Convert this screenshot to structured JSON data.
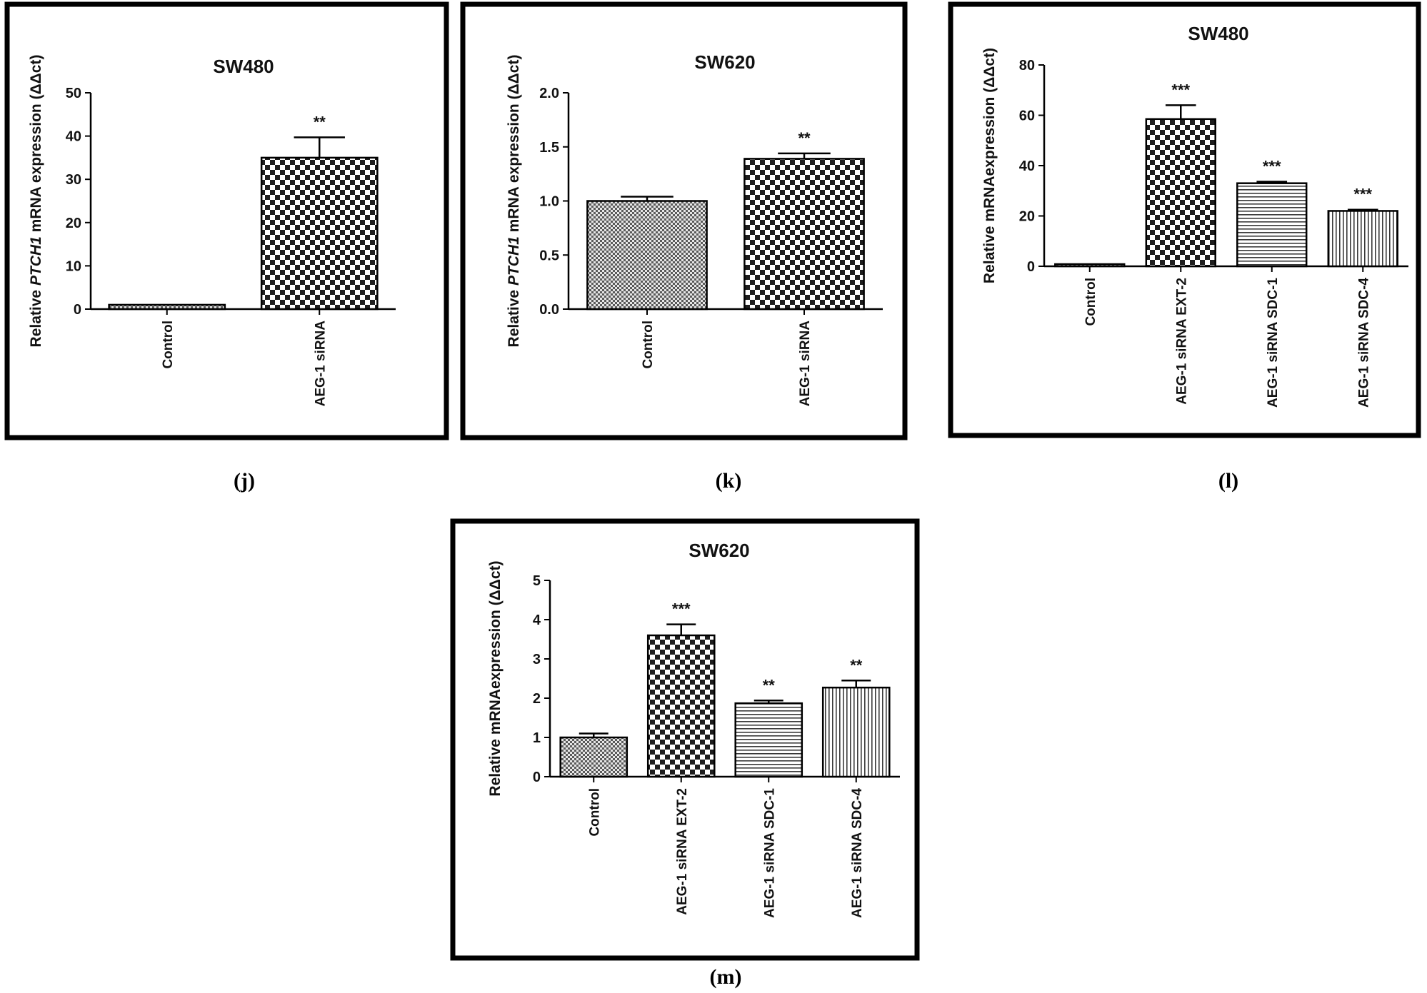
{
  "chart_data": [
    {
      "panel": "(j)",
      "type": "bar",
      "title": "SW480",
      "ylabel": "Relative PTCH1  mRNA  expression (ΔΔct)",
      "ylabel_prefix": "Relative ",
      "ylabel_gene": "PTCH1",
      "ylabel_suffix": "  mRNA  expression (ΔΔct)",
      "xlabel": "",
      "ylim": [
        0,
        50
      ],
      "yticks": [
        0,
        10,
        20,
        30,
        40,
        50
      ],
      "ytick_labels": [
        "0",
        "10",
        "20",
        "30",
        "40",
        "50"
      ],
      "categories": [
        "Control",
        "AEG-1 siRNA"
      ],
      "values": [
        1,
        35
      ],
      "errors": [
        0,
        4.7
      ],
      "significance": [
        "",
        "**"
      ],
      "patterns": [
        "checker-small",
        "checker"
      ]
    },
    {
      "panel": "(k)",
      "type": "bar",
      "title": "SW620",
      "ylabel": "Relative PTCH1  mRNA  expression (ΔΔct)",
      "ylabel_prefix": "Relative ",
      "ylabel_gene": "PTCH1",
      "ylabel_suffix": "  mRNA  expression (ΔΔct)",
      "xlabel": "",
      "ylim": [
        0,
        2.0
      ],
      "yticks": [
        0,
        0.5,
        1.0,
        1.5,
        2.0
      ],
      "ytick_labels": [
        "0.0",
        "0.5",
        "1.0",
        "1.5",
        "2.0"
      ],
      "categories": [
        "Control",
        "AEG-1 siRNA"
      ],
      "values": [
        1.0,
        1.39
      ],
      "errors": [
        0.04,
        0.05
      ],
      "significance": [
        "",
        "**"
      ],
      "patterns": [
        "checker-small",
        "checker"
      ]
    },
    {
      "panel": "(l)",
      "type": "bar",
      "title": "SW480",
      "ylabel": "Relative mRNAexpression (ΔΔct)",
      "ylabel_prefix": "Relative mRNAexpression (ΔΔct)",
      "ylabel_gene": "",
      "ylabel_suffix": "",
      "xlabel": "",
      "ylim": [
        0,
        80
      ],
      "yticks": [
        0,
        20,
        40,
        60,
        80
      ],
      "ytick_labels": [
        "0",
        "20",
        "40",
        "60",
        "80"
      ],
      "categories": [
        "Control",
        "AEG-1 siRNA EXT-2",
        "AEG-1 siRNA SDC-1",
        "AEG-1 siRNA SDC-4"
      ],
      "values": [
        0.5,
        58.5,
        33,
        22
      ],
      "errors": [
        0,
        5.5,
        0.6,
        0.5
      ],
      "significance": [
        "",
        "***",
        "***",
        "***"
      ],
      "patterns": [
        "checker-small",
        "checker",
        "hlines",
        "vlines"
      ]
    },
    {
      "panel": "(m)",
      "type": "bar",
      "title": "SW620",
      "ylabel": "Relative mRNAexpression (ΔΔct)",
      "ylabel_prefix": "Relative mRNAexpression (ΔΔct)",
      "ylabel_gene": "",
      "ylabel_suffix": "",
      "xlabel": "",
      "ylim": [
        0,
        5
      ],
      "yticks": [
        0,
        1,
        2,
        3,
        4,
        5
      ],
      "ytick_labels": [
        "0",
        "1",
        "2",
        "3",
        "4",
        "5"
      ],
      "categories": [
        "Control",
        "AEG-1 siRNA EXT-2",
        "AEG-1 siRNA SDC-1",
        "AEG-1 siRNA SDC-4"
      ],
      "values": [
        1.0,
        3.6,
        1.87,
        2.27
      ],
      "errors": [
        0.1,
        0.28,
        0.07,
        0.18
      ],
      "significance": [
        "",
        "***",
        "**",
        "**"
      ],
      "patterns": [
        "checker-small",
        "checker",
        "hlines",
        "vlines"
      ]
    }
  ]
}
